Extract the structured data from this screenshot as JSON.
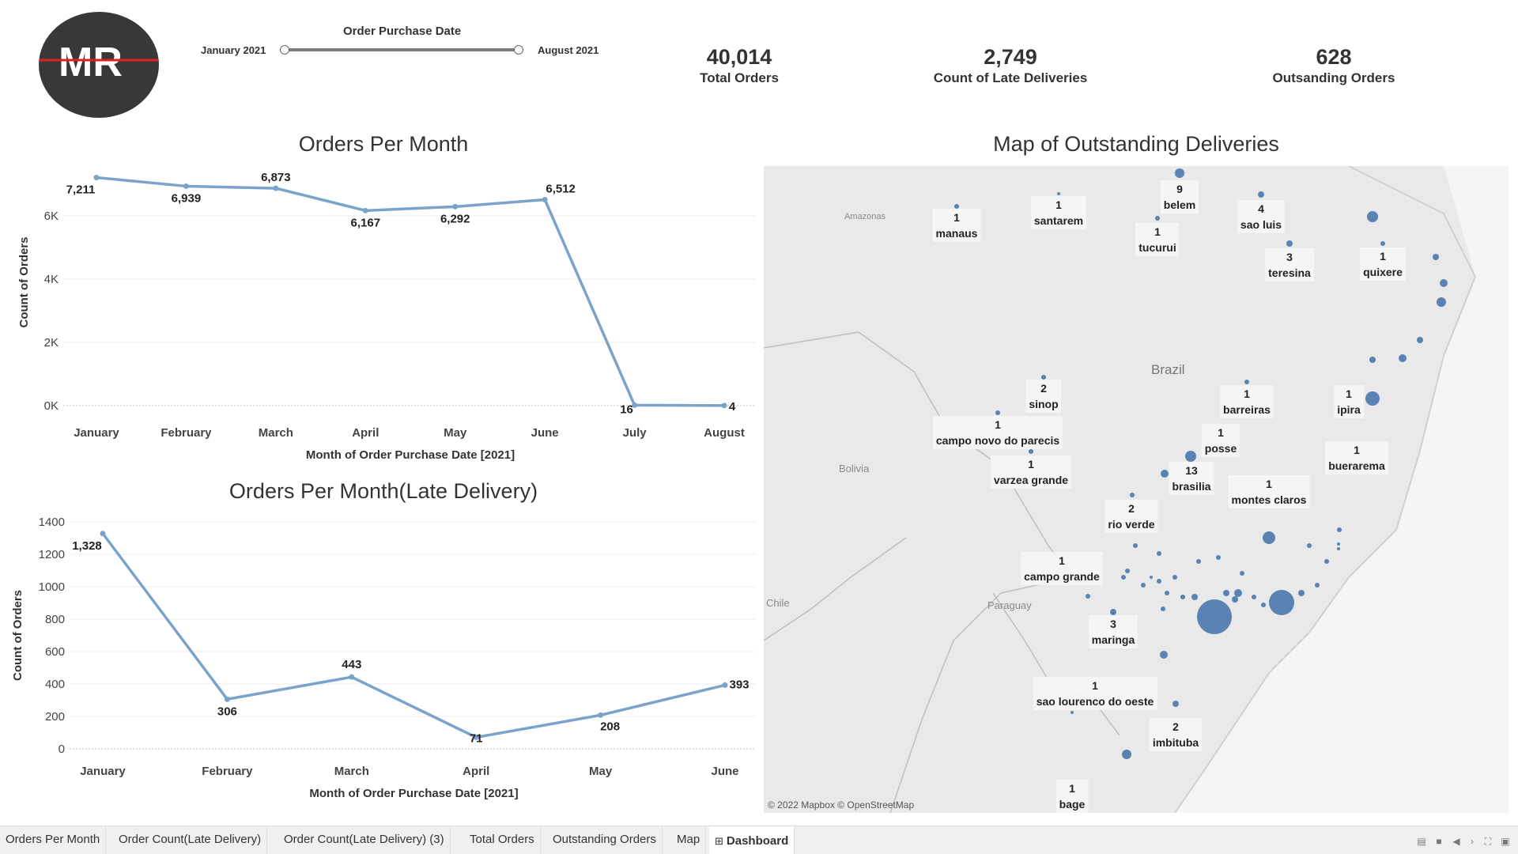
{
  "logo": {
    "text": "MR"
  },
  "filter": {
    "title": "Order Purchase Date",
    "start_label": "January 2021",
    "end_label": "August 2021"
  },
  "kpis": [
    {
      "value": "40,014",
      "label": "Total Orders"
    },
    {
      "value": "2,749",
      "label": "Count of Late Deliveries"
    },
    {
      "value": "628",
      "label": "Outsanding  Orders"
    }
  ],
  "colors": {
    "accent": "#7aa3c9",
    "map_point": "#4a78ad",
    "logo_bg": "#383838",
    "logo_line": "#e02020"
  },
  "chart_data": [
    {
      "type": "line",
      "title": "Orders Per Month",
      "xlabel": "Month of Order Purchase Date [2021]",
      "ylabel": "Count of Orders",
      "categories": [
        "January",
        "February",
        "March",
        "April",
        "May",
        "June",
        "July",
        "August"
      ],
      "values": [
        7211,
        6939,
        6873,
        6167,
        6292,
        6512,
        16,
        4
      ],
      "value_labels": [
        "7,211",
        "6,939",
        "6,873",
        "6,167",
        "6,292",
        "6,512",
        "16",
        "4"
      ],
      "y_ticks": [
        0,
        2000,
        4000,
        6000
      ],
      "y_tick_labels": [
        "0K",
        "2K",
        "4K",
        "6K"
      ],
      "ylim": [
        0,
        7800
      ],
      "grid": true
    },
    {
      "type": "line",
      "title": "Orders Per Month(Late Delivery)",
      "xlabel": "Month of Order Purchase Date [2021]",
      "ylabel": "Count of Orders",
      "categories": [
        "January",
        "February",
        "March",
        "April",
        "May",
        "June"
      ],
      "values": [
        1328,
        306,
        443,
        71,
        208,
        393
      ],
      "value_labels": [
        "1,328",
        "306",
        "443",
        "71",
        "208",
        "393"
      ],
      "y_ticks": [
        0,
        200,
        400,
        600,
        800,
        1000,
        1200,
        1400
      ],
      "y_tick_labels": [
        "0",
        "200",
        "400",
        "600",
        "800",
        "1000",
        "1200",
        "1400"
      ],
      "ylim": [
        0,
        1400
      ],
      "grid": true
    }
  ],
  "map": {
    "title": "Map of Outstanding Deliveries",
    "attribution": "© 2022 Mapbox © OpenStreetMap",
    "regions": [
      "Brazil",
      "Bolivia",
      "Paraguay",
      "Chile",
      "Amazonas"
    ],
    "callouts": [
      {
        "count": "1",
        "city": "manaus"
      },
      {
        "count": "1",
        "city": "santarem"
      },
      {
        "count": "9",
        "city": "belem"
      },
      {
        "count": "4",
        "city": "sao luis"
      },
      {
        "count": "1",
        "city": "tucurui"
      },
      {
        "count": "3",
        "city": "teresina"
      },
      {
        "count": "1",
        "city": "quixere"
      },
      {
        "count": "2",
        "city": "sinop"
      },
      {
        "count": "1",
        "city": "barreiras"
      },
      {
        "count": "1",
        "city": "ipira"
      },
      {
        "count": "1",
        "city": "campo novo do parecis"
      },
      {
        "count": "1",
        "city": "posse"
      },
      {
        "count": "1",
        "city": "buerarema"
      },
      {
        "count": "1",
        "city": "varzea grande"
      },
      {
        "count": "13",
        "city": "brasilia"
      },
      {
        "count": "1",
        "city": "montes claros"
      },
      {
        "count": "2",
        "city": "rio verde"
      },
      {
        "count": "1",
        "city": "campo grande"
      },
      {
        "count": "3",
        "city": "maringa"
      },
      {
        "count": "1",
        "city": "sao lourenco do oeste"
      },
      {
        "count": "2",
        "city": "imbituba"
      },
      {
        "count": "1",
        "city": "bage"
      }
    ]
  },
  "tabs": [
    {
      "label": "Orders Per Month"
    },
    {
      "label": "Order Count(Late Delivery)"
    },
    {
      "label": "Order Count(Late Delivery) (3)"
    },
    {
      "label": "Total Orders"
    },
    {
      "label": "Outstanding Orders"
    },
    {
      "label": "Map"
    },
    {
      "label": "Dashboard",
      "icon": "dashboard-icon"
    }
  ]
}
